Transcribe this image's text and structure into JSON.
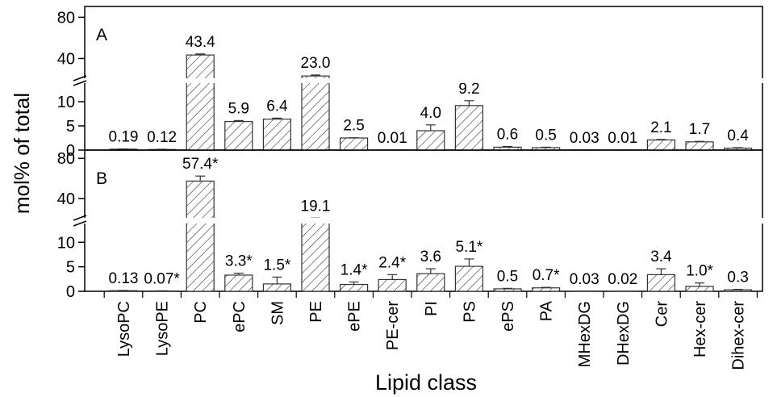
{
  "chart_data": {
    "type": "bar",
    "xlabel": "Lipid class",
    "ylabel": "mol% of total",
    "categories": [
      "LysoPC",
      "LysoPE",
      "PC",
      "ePC",
      "SM",
      "PE",
      "ePE",
      "PE-cer",
      "PI",
      "PS",
      "ePS",
      "PA",
      "MHexDG",
      "DHexDG",
      "Cer",
      "Hex-cer",
      "Dihex-cer"
    ],
    "y_axis_break": {
      "lower_range": [
        0,
        14
      ],
      "upper_range": [
        20,
        85
      ],
      "lower_ticks": [
        0,
        5,
        10
      ],
      "upper_ticks": [
        40,
        80
      ]
    },
    "panels": [
      {
        "label": "A",
        "values": [
          0.19,
          0.12,
          43.4,
          5.9,
          6.4,
          23.0,
          2.5,
          0.01,
          4.0,
          9.2,
          0.6,
          0.5,
          0.03,
          0.01,
          2.1,
          1.7,
          0.4
        ],
        "errors": [
          0.05,
          0.05,
          1.0,
          0.2,
          0.2,
          1.0,
          0.05,
          0.0,
          1.2,
          1.0,
          0.15,
          0.1,
          0.0,
          0.0,
          0.1,
          0.1,
          0.1
        ],
        "labels": [
          "0.19",
          "0.12",
          "43.4",
          "5.9",
          "6.4",
          "23.0",
          "2.5",
          "0.01",
          "4.0",
          "9.2",
          "0.6",
          "0.5",
          "0.03",
          "0.01",
          "2.1",
          "1.7",
          "0.4"
        ]
      },
      {
        "label": "B",
        "values": [
          0.13,
          0.07,
          57.4,
          3.3,
          1.5,
          19.1,
          1.4,
          2.4,
          3.6,
          5.1,
          0.5,
          0.7,
          0.03,
          0.02,
          3.4,
          1.0,
          0.3
        ],
        "errors": [
          0.05,
          0.03,
          5.0,
          0.4,
          1.4,
          1.5,
          0.5,
          1.0,
          1.0,
          1.5,
          0.1,
          0.1,
          0.0,
          0.0,
          1.2,
          0.7,
          0.1
        ],
        "labels": [
          "0.13",
          "0.07*",
          "57.4*",
          "3.3*",
          "1.5*",
          "19.1",
          "1.4*",
          "2.4*",
          "3.6",
          "5.1*",
          "0.5",
          "0.7*",
          "0.03",
          "0.02",
          "3.4",
          "1.0*",
          "0.3"
        ]
      }
    ]
  }
}
